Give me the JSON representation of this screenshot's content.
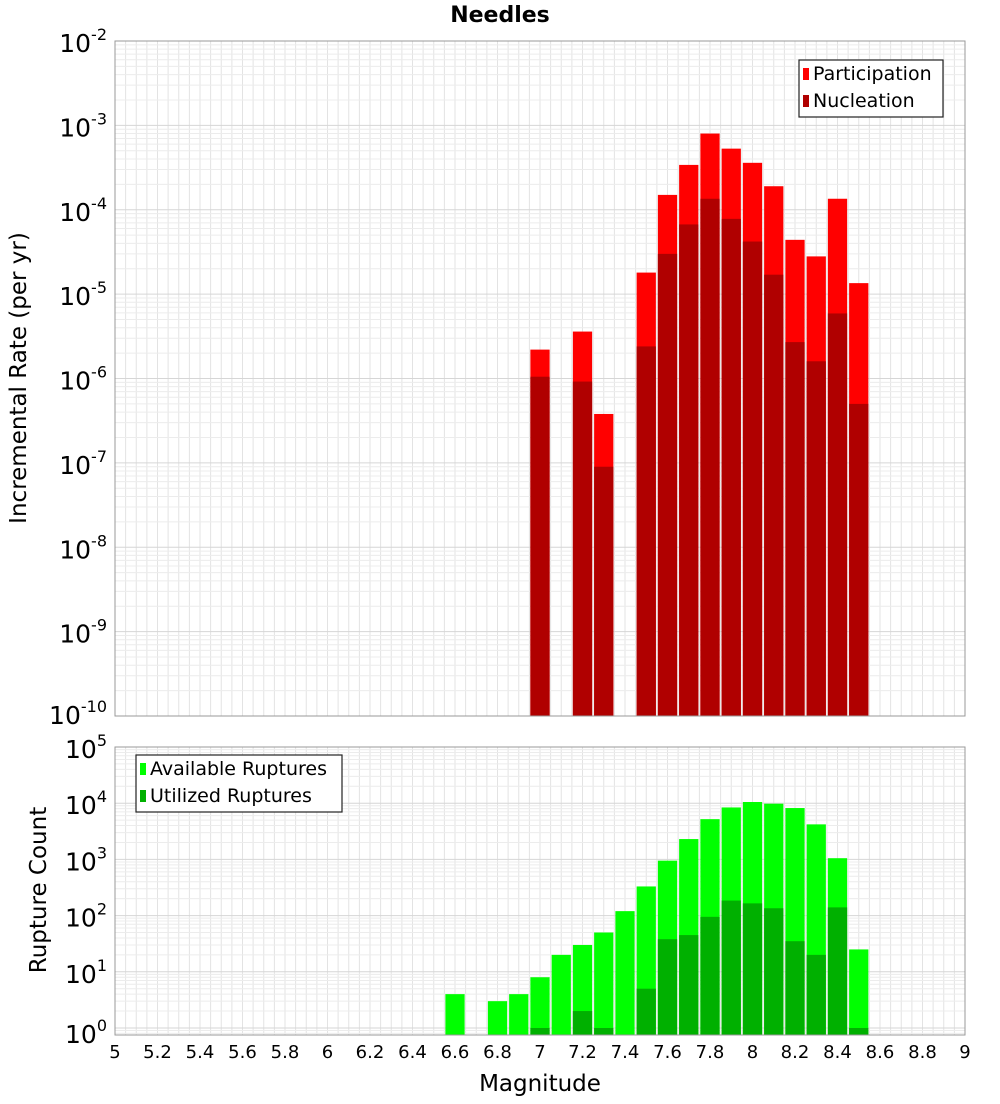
{
  "chart_data": [
    {
      "type": "bar",
      "title": "Needles",
      "xlabel": "",
      "ylabel": "Incremental Rate (per yr)",
      "yscale": "log",
      "ylim": [
        1e-10,
        0.01
      ],
      "xlim": [
        5,
        9
      ],
      "bar_width": 0.1,
      "grid": true,
      "legend_position": "top-right",
      "x": [
        7.0,
        7.1,
        7.2,
        7.3,
        7.4,
        7.5,
        7.6,
        7.7,
        7.8,
        7.9,
        8.0,
        8.1,
        8.2,
        8.3,
        8.4,
        8.5,
        8.6
      ],
      "series": [
        {
          "name": "Participation",
          "color": "#ff0000",
          "values": [
            2.2e-06,
            null,
            3.6e-06,
            3.8e-07,
            null,
            1.8e-05,
            0.00015,
            0.00034,
            0.0008,
            0.00053,
            0.00036,
            0.00019,
            4.4e-05,
            2.8e-05,
            0.000135,
            1.35e-05,
            null
          ]
        },
        {
          "name": "Nucleation",
          "color": "#b00000",
          "values": [
            1.05e-06,
            null,
            9.2e-07,
            9e-08,
            null,
            2.4e-06,
            3e-05,
            6.7e-05,
            0.000135,
            7.8e-05,
            4.2e-05,
            1.7e-05,
            2.7e-06,
            1.6e-06,
            5.9e-06,
            5e-07,
            null
          ]
        }
      ]
    },
    {
      "type": "bar",
      "title": "",
      "xlabel": "Magnitude",
      "ylabel": "Rupture Count",
      "yscale": "log",
      "ylim": [
        0.75,
        100000
      ],
      "xlim": [
        5,
        9
      ],
      "bar_width": 0.1,
      "grid": true,
      "legend_position": "top-left",
      "x_ticks": [
        5,
        5.2,
        5.4,
        5.6,
        5.8,
        6,
        6.2,
        6.4,
        6.6,
        6.8,
        7,
        7.2,
        7.4,
        7.6,
        7.8,
        8,
        8.2,
        8.4,
        8.6,
        8.8,
        9
      ],
      "x": [
        6.6,
        6.7,
        6.8,
        6.9,
        7.0,
        7.1,
        7.2,
        7.3,
        7.4,
        7.5,
        7.6,
        7.7,
        7.8,
        7.9,
        8.0,
        8.1,
        8.2,
        8.3,
        8.4,
        8.5,
        8.6
      ],
      "series": [
        {
          "name": "Available Ruptures",
          "color": "#00ff00",
          "values": [
            4,
            null,
            3,
            4,
            8,
            20,
            30,
            50,
            120,
            330,
            950,
            2300,
            5200,
            8400,
            10500,
            9800,
            8200,
            4200,
            1050,
            25,
            null
          ]
        },
        {
          "name": "Utilized Ruptures",
          "color": "#00b000",
          "values": [
            null,
            null,
            null,
            null,
            1,
            null,
            2,
            1,
            null,
            5,
            38,
            45,
            95,
            185,
            165,
            135,
            35,
            20,
            140,
            1,
            null
          ]
        }
      ]
    }
  ]
}
